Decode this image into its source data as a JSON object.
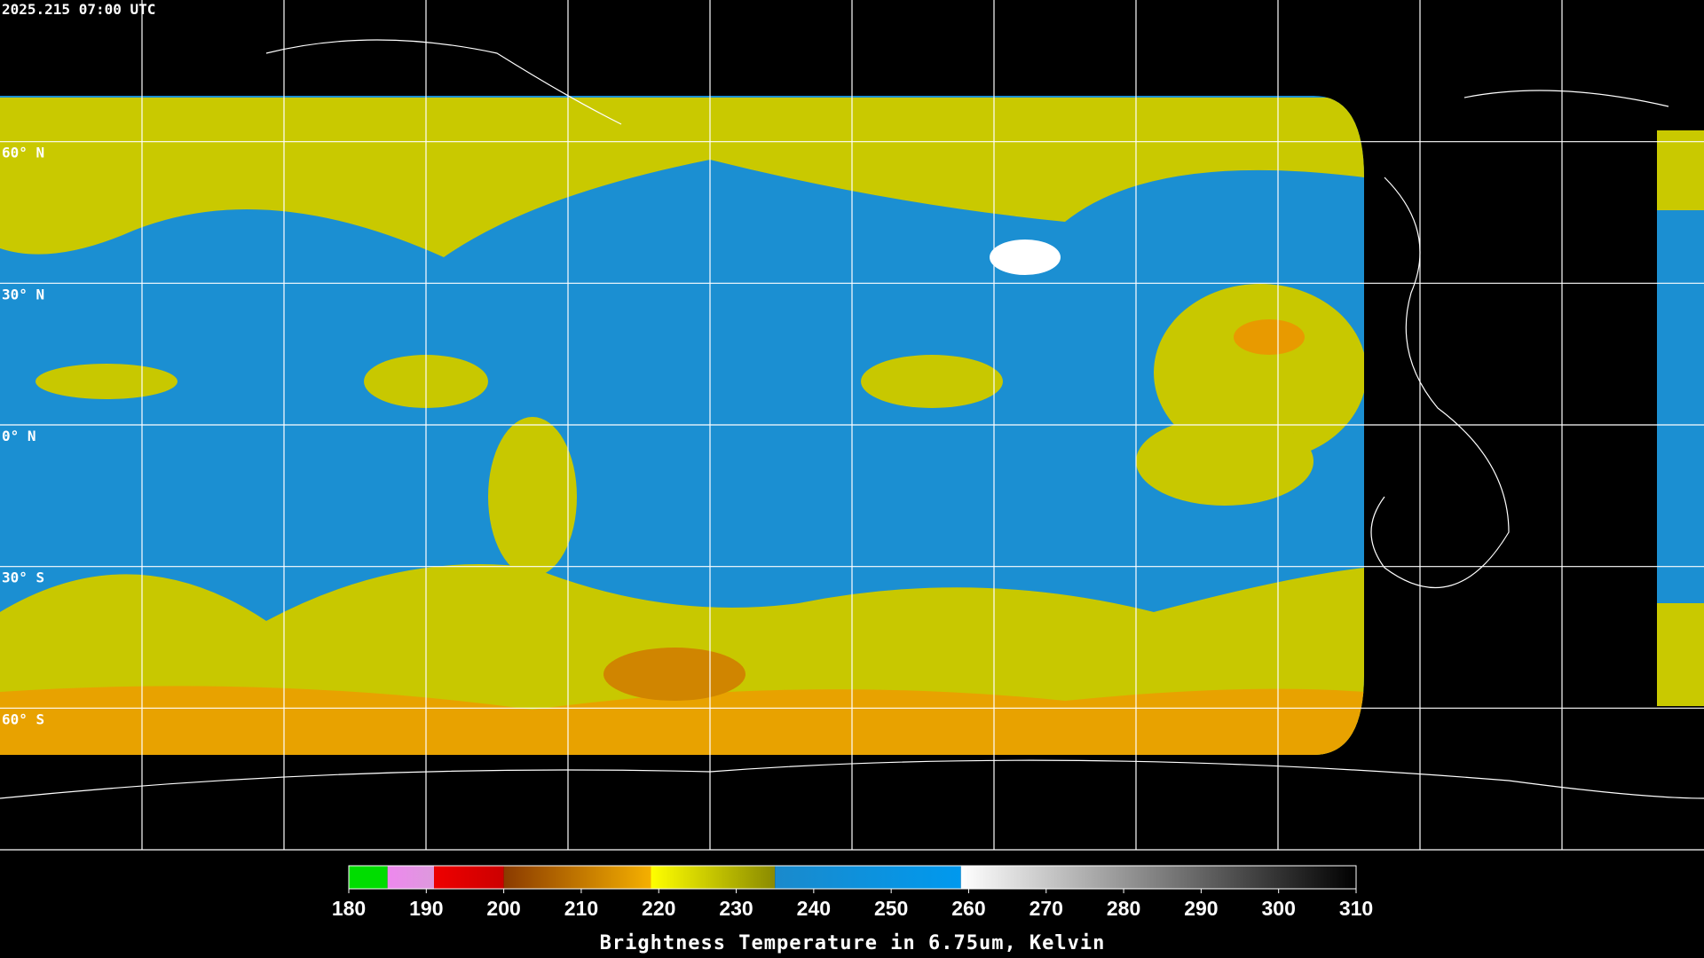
{
  "header": {
    "timestamp": "2025.215 07:00 UTC"
  },
  "map": {
    "lat_range": [
      90,
      -90
    ],
    "lon_range": [
      -180,
      180
    ],
    "lat_lines": [
      {
        "value": 60,
        "label": "60° N"
      },
      {
        "value": 30,
        "label": "30° N"
      },
      {
        "value": 0,
        "label": "0° N"
      },
      {
        "value": -30,
        "label": "30° S"
      },
      {
        "value": -60,
        "label": "60° S"
      }
    ],
    "lon_lines": [
      -150,
      -120,
      -90,
      -60,
      -30,
      0,
      30,
      60,
      90,
      120,
      150
    ]
  },
  "colorbar": {
    "range": [
      180,
      310
    ],
    "ticks": [
      180,
      190,
      200,
      210,
      220,
      230,
      240,
      250,
      260,
      270,
      280,
      290,
      300,
      310
    ],
    "segments": [
      {
        "from": 180,
        "to": 185,
        "colors": [
          "#00dd00",
          "#00dd00"
        ]
      },
      {
        "from": 185,
        "to": 191,
        "colors": [
          "#ee88ee",
          "#dd99dd"
        ]
      },
      {
        "from": 191,
        "to": 200,
        "colors": [
          "#ee0000",
          "#cc0000"
        ]
      },
      {
        "from": 200,
        "to": 219,
        "colors": [
          "#8a3a00",
          "#f5b000"
        ]
      },
      {
        "from": 219,
        "to": 235,
        "colors": [
          "#ffff00",
          "#8a8a00"
        ]
      },
      {
        "from": 235,
        "to": 259,
        "colors": [
          "#1a8acc",
          "#0099ee"
        ]
      },
      {
        "from": 259,
        "to": 310,
        "colors": [
          "#ffffff",
          "#000000"
        ]
      }
    ],
    "label": "Brightness Temperature in 6.75um, Kelvin"
  }
}
